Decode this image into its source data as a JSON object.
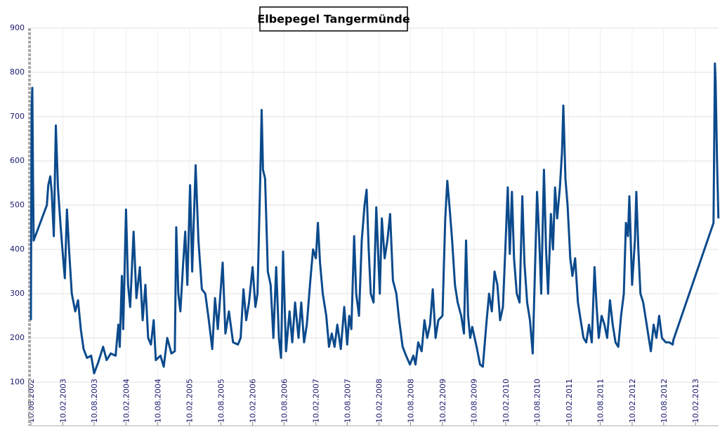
{
  "chart_data": {
    "type": "line",
    "title": "Elbepegel Tangermünde",
    "x": [
      "10.08.2002",
      "14.08.2002",
      "18.08.2002",
      "22.08.2002",
      "26.08.2002",
      "10.11.2002",
      "18.11.2002",
      "30.11.2002",
      "08.12.2002",
      "20.12.2002",
      "01.01.2003",
      "13.01.2003",
      "29.01.2003",
      "14.02.2003",
      "22.02.2003",
      "06.03.2003",
      "18.03.2003",
      "03.04.2003",
      "23.04.2003",
      "09.05.2003",
      "25.05.2003",
      "10.06.2003",
      "30.06.2003",
      "24.07.2003",
      "10.08.2003",
      "03.09.2003",
      "01.10.2003",
      "21.10.2003",
      "14.11.2003",
      "12.12.2003",
      "28.12.2003",
      "05.01.2004",
      "17.01.2004",
      "25.01.2004",
      "10.02.2004",
      "22.02.2004",
      "05.03.2004",
      "25.03.2004",
      "10.04.2004",
      "30.04.2004",
      "16.05.2004",
      "01.06.2004",
      "17.06.2004",
      "03.07.2004",
      "19.07.2004",
      "31.07.2004",
      "27.08.2004",
      "15.09.2004",
      "05.10.2004",
      "29.10.2004",
      "18.11.2004",
      "26.11.2004",
      "08.12.2004",
      "20.12.2004",
      "05.01.2005",
      "17.01.2005",
      "29.01.2005",
      "14.02.2005",
      "26.02.2005",
      "18.03.2005",
      "03.04.2005",
      "23.04.2005",
      "13.05.2005",
      "02.06.2005",
      "22.06.2005",
      "08.07.2005",
      "24.07.2005",
      "21.08.2005",
      "06.09.2005",
      "26.09.2005",
      "20.10.2005",
      "17.11.2005",
      "03.12.2005",
      "19.12.2005",
      "04.01.2006",
      "20.01.2006",
      "10.02.2006",
      "26.02.2006",
      "10.03.2006",
      "26.03.2006",
      "03.04.2006",
      "11.04.2006",
      "23.04.2006",
      "09.05.2006",
      "25.05.2006",
      "10.06.2006",
      "26.06.2006",
      "12.07.2006",
      "24.07.2006",
      "05.08.2006",
      "22.08.2006",
      "11.09.2006",
      "27.09.2006",
      "13.10.2006",
      "02.11.2006",
      "18.11.2006",
      "04.12.2006",
      "20.12.2006",
      "09.01.2007",
      "25.01.2007",
      "10.02.2007",
      "22.02.2007",
      "06.03.2007",
      "22.03.2007",
      "11.04.2007",
      "27.04.2007",
      "13.05.2007",
      "29.05.2007",
      "14.06.2007",
      "04.07.2007",
      "24.07.2007",
      "10.08.2007",
      "22.08.2007",
      "03.09.2007",
      "19.09.2007",
      "01.10.2007",
      "17.10.2007",
      "02.11.2007",
      "18.11.2007",
      "30.11.2007",
      "12.12.2007",
      "24.12.2007",
      "09.01.2008",
      "25.01.2008",
      "14.02.2008",
      "26.02.2008",
      "13.03.2008",
      "29.03.2008",
      "14.04.2008",
      "30.04.2008",
      "20.05.2008",
      "05.06.2008",
      "25.06.2008",
      "15.07.2008",
      "06.08.2008",
      "26.08.2008",
      "07.09.2008",
      "23.09.2008",
      "13.10.2008",
      "29.10.2008",
      "14.11.2008",
      "30.11.2008",
      "16.12.2008",
      "01.01.2009",
      "17.01.2009",
      "10.02.2009",
      "26.02.2009",
      "10.03.2009",
      "22.03.2009",
      "07.04.2009",
      "23.04.2009",
      "09.05.2009",
      "29.05.2009",
      "14.06.2009",
      "26.06.2009",
      "08.07.2009",
      "20.07.2009",
      "01.08.2009",
      "26.08.2009",
      "15.09.2009",
      "01.10.2009",
      "21.10.2009",
      "06.11.2009",
      "22.11.2009",
      "08.12.2009",
      "24.12.2009",
      "09.01.2010",
      "25.01.2010",
      "10.02.2010",
      "22.02.2010",
      "06.03.2010",
      "18.03.2010",
      "30.03.2010",
      "15.04.2010",
      "01.05.2010",
      "17.05.2010",
      "29.05.2010",
      "14.06.2010",
      "30.06.2010",
      "16.07.2010",
      "28.07.2010",
      "10.08.2010",
      "22.08.2010",
      "03.09.2010",
      "19.09.2010",
      "01.10.2010",
      "13.10.2010",
      "29.10.2010",
      "10.11.2010",
      "22.11.2010",
      "04.12.2010",
      "20.12.2010",
      "01.01.2011",
      "09.01.2011",
      "21.01.2011",
      "02.02.2011",
      "18.02.2011",
      "02.03.2011",
      "18.03.2011",
      "03.04.2011",
      "19.04.2011",
      "05.05.2011",
      "21.05.2011",
      "06.06.2011",
      "22.06.2011",
      "08.07.2011",
      "20.07.2011",
      "01.08.2011",
      "18.08.2011",
      "03.09.2011",
      "19.09.2011",
      "05.10.2011",
      "21.10.2011",
      "06.11.2011",
      "22.11.2011",
      "08.12.2011",
      "24.12.2011",
      "05.01.2012",
      "17.01.2012",
      "25.01.2012",
      "10.02.2012",
      "26.02.2012",
      "05.03.2012",
      "17.03.2012",
      "29.03.2012",
      "14.04.2012",
      "30.04.2012",
      "16.05.2012",
      "28.05.2012",
      "13.06.2012",
      "29.06.2012",
      "15.07.2012",
      "31.07.2012",
      "22.08.2012",
      "11.09.2012",
      "01.10.2012",
      "05.10.2012",
      "25.05.2013",
      "02.06.2013",
      "06.06.2013",
      "14.06.2013",
      "22.06.2013"
    ],
    "series": [
      {
        "color": "#0b4a8c",
        "values": [
          240,
          720,
          765,
          560,
          420,
          500,
          545,
          565,
          530,
          430,
          680,
          540,
          450,
          370,
          335,
          490,
          400,
          300,
          260,
          285,
          220,
          175,
          155,
          160,
          120,
          145,
          180,
          150,
          165,
          160,
          230,
          180,
          340,
          220,
          490,
          320,
          270,
          440,
          290,
          360,
          240,
          320,
          200,
          185,
          240,
          150,
          160,
          135,
          200,
          165,
          170,
          450,
          300,
          260,
          370,
          440,
          320,
          545,
          350,
          590,
          420,
          310,
          300,
          240,
          175,
          290,
          220,
          370,
          210,
          260,
          190,
          185,
          200,
          310,
          240,
          280,
          360,
          270,
          300,
          560,
          715,
          580,
          560,
          350,
          320,
          200,
          360,
          200,
          155,
          395,
          170,
          260,
          190,
          280,
          200,
          280,
          190,
          230,
          330,
          400,
          380,
          460,
          370,
          300,
          250,
          180,
          210,
          180,
          230,
          175,
          270,
          185,
          250,
          220,
          430,
          300,
          250,
          420,
          500,
          535,
          400,
          300,
          280,
          495,
          300,
          470,
          380,
          420,
          480,
          330,
          300,
          240,
          180,
          160,
          140,
          160,
          140,
          190,
          170,
          240,
          200,
          230,
          310,
          200,
          240,
          250,
          470,
          555,
          500,
          420,
          320,
          280,
          250,
          210,
          420,
          250,
          200,
          225,
          180,
          140,
          135,
          230,
          300,
          260,
          350,
          320,
          240,
          270,
          420,
          540,
          390,
          530,
          380,
          300,
          280,
          520,
          370,
          280,
          240,
          165,
          340,
          530,
          430,
          300,
          580,
          400,
          300,
          480,
          400,
          540,
          470,
          540,
          620,
          725,
          560,
          500,
          380,
          340,
          380,
          280,
          240,
          200,
          190,
          230,
          190,
          360,
          270,
          200,
          250,
          230,
          200,
          285,
          230,
          190,
          180,
          250,
          300,
          460,
          430,
          520,
          320,
          420,
          530,
          400,
          300,
          280,
          240,
          200,
          170,
          230,
          200,
          250,
          200,
          190,
          190,
          185,
          195,
          460,
          820,
          780,
          600,
          470
        ]
      }
    ],
    "xlim": [
      "10.08.2002",
      "23.06.2013"
    ],
    "xticks": [
      "10.08.2002",
      "10.02.2003",
      "10.08.2003",
      "10.02.2004",
      "10.08.2004",
      "10.02.2005",
      "10.08.2005",
      "10.02.2006",
      "10.08.2006",
      "10.02.2007",
      "10.08.2007",
      "10.02.2008",
      "10.08.2008",
      "10.02.2009",
      "10.08.2009",
      "10.02.2010",
      "10.08.2010",
      "10.02.2011",
      "10.08.2011",
      "10.02.2012",
      "10.08.2012",
      "10.02.2013"
    ],
    "ylim": [
      100,
      900
    ],
    "yticks": [
      100,
      200,
      300,
      400,
      500,
      600,
      700,
      800,
      900
    ],
    "grid": true
  }
}
